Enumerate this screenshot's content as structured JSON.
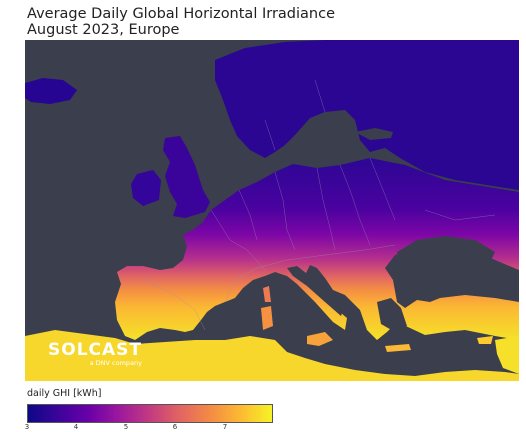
{
  "title": {
    "line1": "Average Daily Global Horizontal Irradiance",
    "line2": "August 2023, Europe"
  },
  "logo": {
    "wordmark": "SOLCAST",
    "tagline": "a DNV company"
  },
  "legend": {
    "label": "daily GHI [kWh]",
    "colormap": "plasma",
    "ticks": [
      "3",
      "4",
      "5",
      "6",
      "7"
    ],
    "range": [
      3,
      7.9
    ]
  },
  "colors": {
    "sea": "#3b3e4c",
    "low": "#0d0887",
    "mid": "#c33b80",
    "high": "#f6f326",
    "borders": "#9a8fb5"
  }
}
